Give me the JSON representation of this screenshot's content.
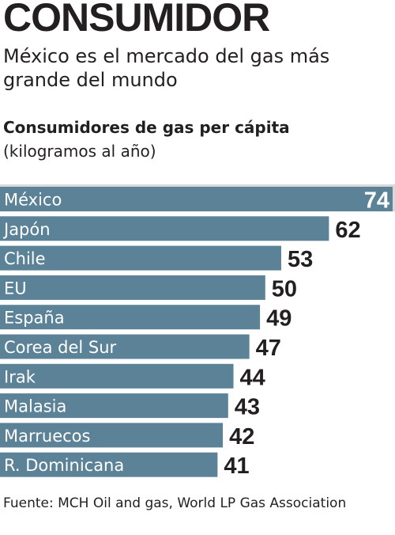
{
  "header": {
    "headline": "CONSUMIDOR",
    "subtitle": "México es el mercado del gas más grande del mundo"
  },
  "chart_data": {
    "type": "bar",
    "orientation": "horizontal",
    "title": "Consumidores de gas per cápita",
    "unit": "(kilogramos al año)",
    "categories": [
      "México",
      "Japón",
      "Chile",
      "EU",
      "España",
      "Corea del Sur",
      "Irak",
      "Malasia",
      "Marruecos",
      "R. Dominicana"
    ],
    "values": [
      74,
      62,
      53,
      50,
      49,
      47,
      44,
      43,
      42,
      41
    ],
    "xlim": [
      0,
      74
    ],
    "grid": false,
    "legend": "none",
    "bar_color": "#5b8297",
    "top_band_color": "#d8d8d8",
    "label_color": "#ffffff",
    "value_color": "#231f20"
  },
  "footer": {
    "source": "Fuente: MCH Oil and gas, World LP Gas Association"
  }
}
